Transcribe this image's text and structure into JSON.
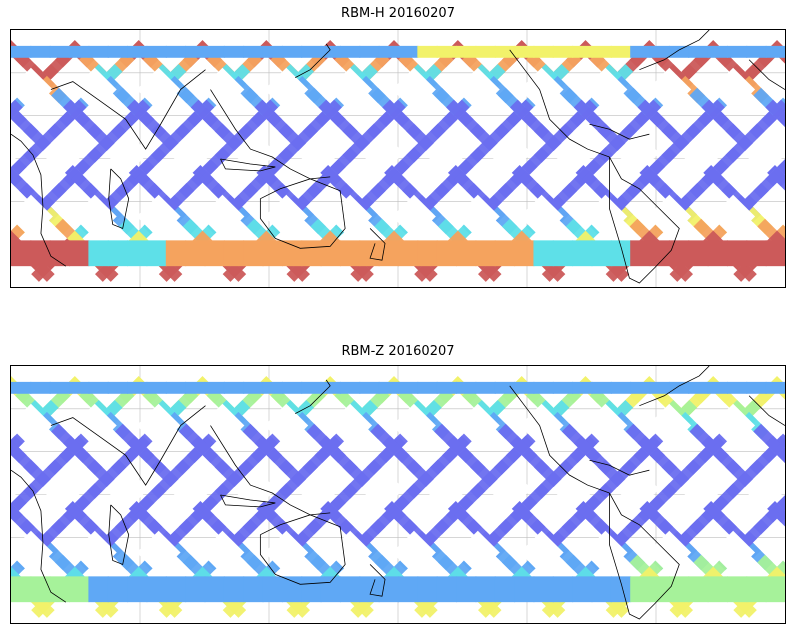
{
  "panels": [
    {
      "id": "h",
      "title": "RBM-H 20160207",
      "top_palette": "h"
    },
    {
      "id": "z",
      "title": "RBM-Z 20160207",
      "top_palette": "z"
    }
  ],
  "colors": {
    "blue": "#6b6ef0",
    "lightblue": "#5fa8f5",
    "cyan": "#5ee0e8",
    "green": "#a6f29a",
    "yellow": "#f2f26a",
    "orange": "#f5a35e",
    "red": "#e0605a",
    "darkred": "#cc5a5a",
    "grid": "#bdbdbd",
    "coast": "#000000"
  }
}
